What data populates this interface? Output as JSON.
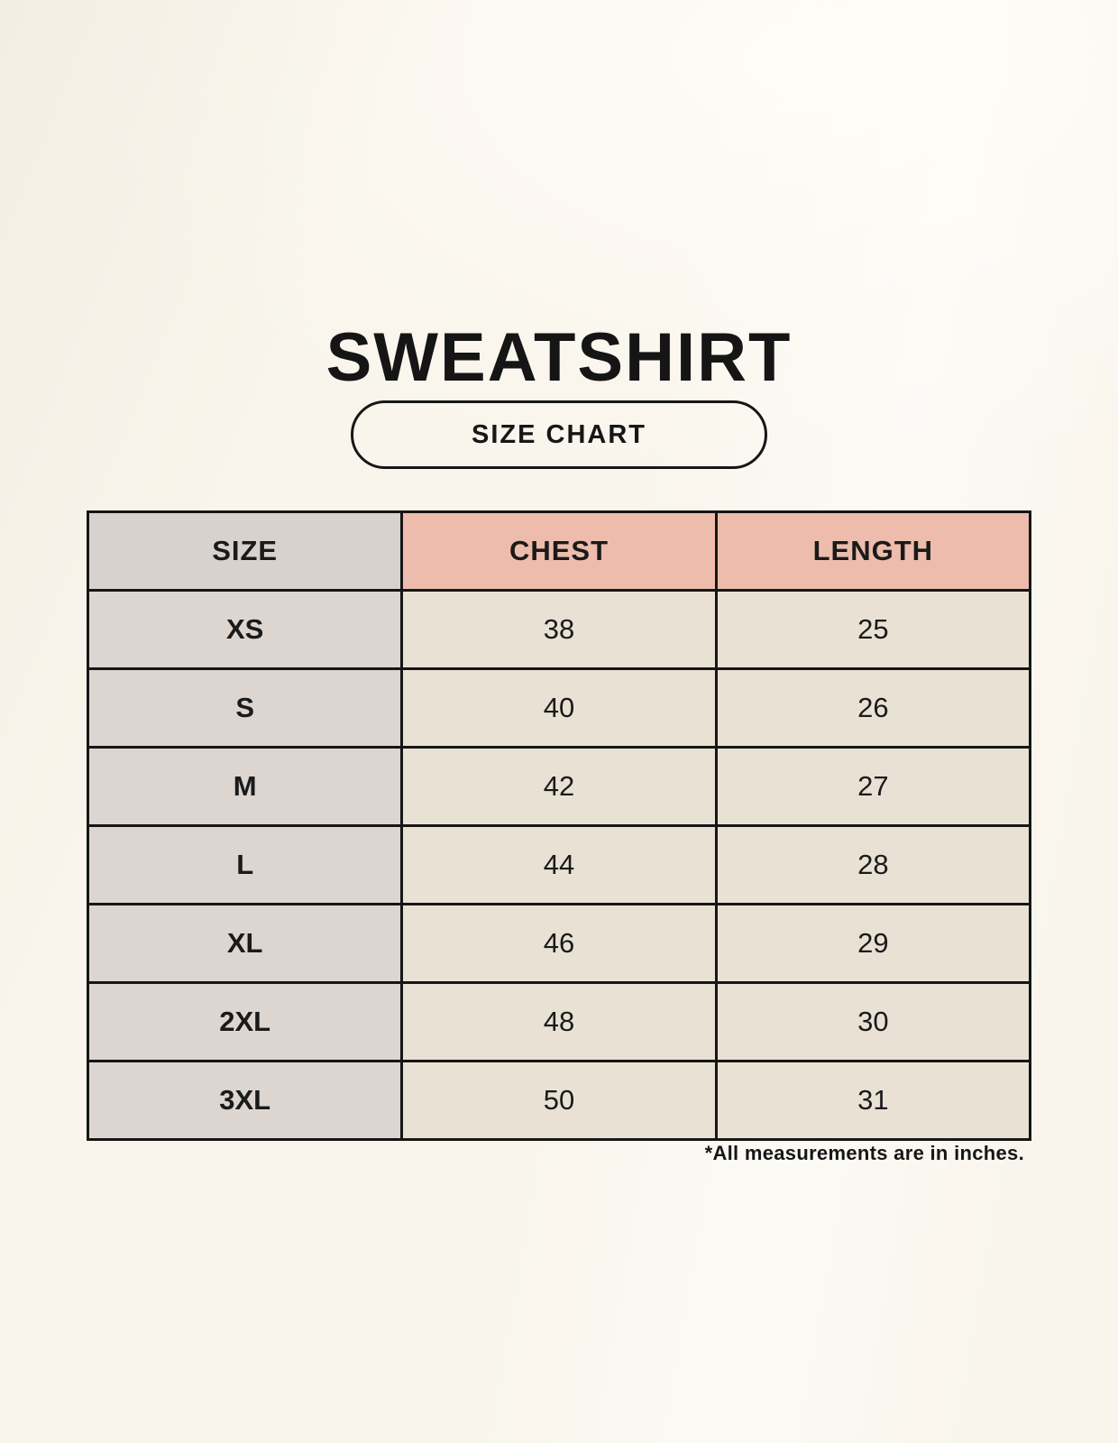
{
  "title": "SWEATSHIRT",
  "badge_label": "SIZE CHART",
  "footnote": "*All measurements are in inches.",
  "colors": {
    "background": "#f9f5ec",
    "header_size_bg": "#d8d2ce",
    "header_measure_bg": "#eebcac",
    "size_column_bg": "#dcd5d0",
    "data_cell_bg": "#e9e2d4",
    "border": "#161616",
    "text": "#1a1a1a"
  },
  "chart_data": {
    "type": "table",
    "title": "SWEATSHIRT",
    "subtitle": "SIZE CHART",
    "columns": [
      "SIZE",
      "CHEST",
      "LENGTH"
    ],
    "rows": [
      [
        "XS",
        "38",
        "25"
      ],
      [
        "S",
        "40",
        "26"
      ],
      [
        "M",
        "42",
        "27"
      ],
      [
        "L",
        "44",
        "28"
      ],
      [
        "XL",
        "46",
        "29"
      ],
      [
        "2XL",
        "48",
        "30"
      ],
      [
        "3XL",
        "50",
        "31"
      ]
    ],
    "units": "inches",
    "footnote": "*All measurements are in inches."
  }
}
